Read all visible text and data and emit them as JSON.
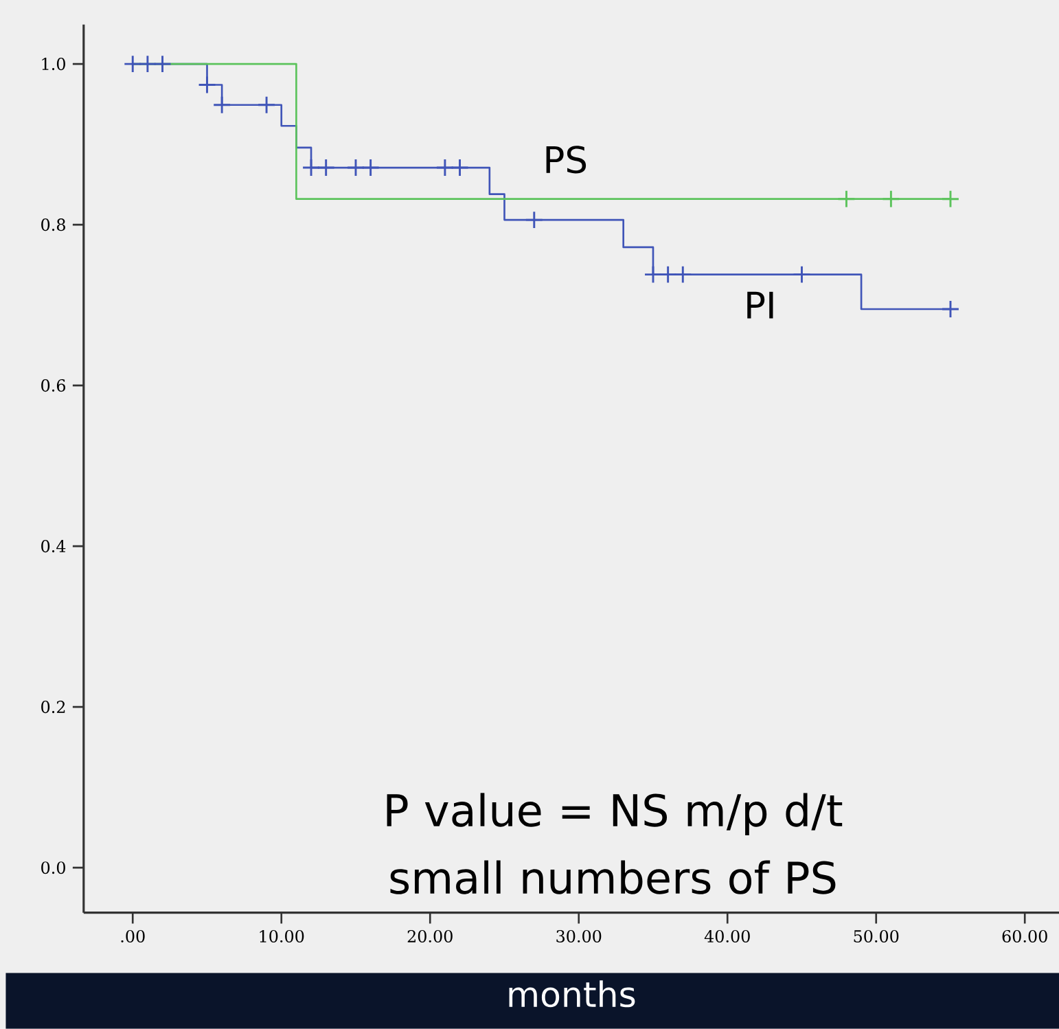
{
  "chart_data": {
    "type": "step",
    "xlabel": "months",
    "xlim": [
      -3.3,
      62.3
    ],
    "ylim": [
      -0.056,
      1.049
    ],
    "xticks": [
      {
        "value": 0,
        "label": ".00"
      },
      {
        "value": 10,
        "label": "10.00"
      },
      {
        "value": 20,
        "label": "20.00"
      },
      {
        "value": 30,
        "label": "30.00"
      },
      {
        "value": 40,
        "label": "40.00"
      },
      {
        "value": 50,
        "label": "50.00"
      },
      {
        "value": 60,
        "label": "60.00"
      }
    ],
    "yticks": [
      {
        "value": 0,
        "label": "0.0"
      },
      {
        "value": 0.2,
        "label": "0.2"
      },
      {
        "value": 0.4,
        "label": "0.4"
      },
      {
        "value": 0.6,
        "label": "0.6"
      },
      {
        "value": 0.8,
        "label": "0.8"
      },
      {
        "value": 1,
        "label": "1.0"
      }
    ],
    "annotations": [
      "P value = NS m/p d/t small numbers of PS"
    ],
    "series": [
      {
        "name": "PI",
        "color": "#4055b8",
        "x": [
          0,
          5,
          6,
          10,
          11,
          12,
          24,
          25,
          33,
          35,
          49,
          55
        ],
        "values": [
          1,
          0.974,
          0.949,
          0.923,
          0.896,
          0.871,
          0.838,
          0.806,
          0.772,
          0.738,
          0.695,
          0.695
        ]
      },
      {
        "name": "PS",
        "color": "#5cc35c",
        "x": [
          0,
          11,
          55
        ],
        "values": [
          1,
          0.832,
          0.832
        ]
      },
      {
        "type": "scatter",
        "marker": "cross",
        "color": "#4055b8",
        "x": [
          0,
          1,
          2,
          5,
          6,
          9,
          12,
          13,
          15,
          16,
          21,
          22,
          27,
          35,
          36,
          37,
          45,
          55
        ],
        "values": [
          1,
          1,
          1,
          0.974,
          0.949,
          0.949,
          0.871,
          0.871,
          0.871,
          0.871,
          0.871,
          0.871,
          0.806,
          0.738,
          0.738,
          0.738,
          0.738,
          0.695
        ]
      },
      {
        "type": "scatter",
        "marker": "cross",
        "color": "#5cc35c",
        "x": [
          48,
          51,
          55
        ],
        "values": [
          0.832,
          0.832,
          0.832
        ]
      }
    ]
  }
}
